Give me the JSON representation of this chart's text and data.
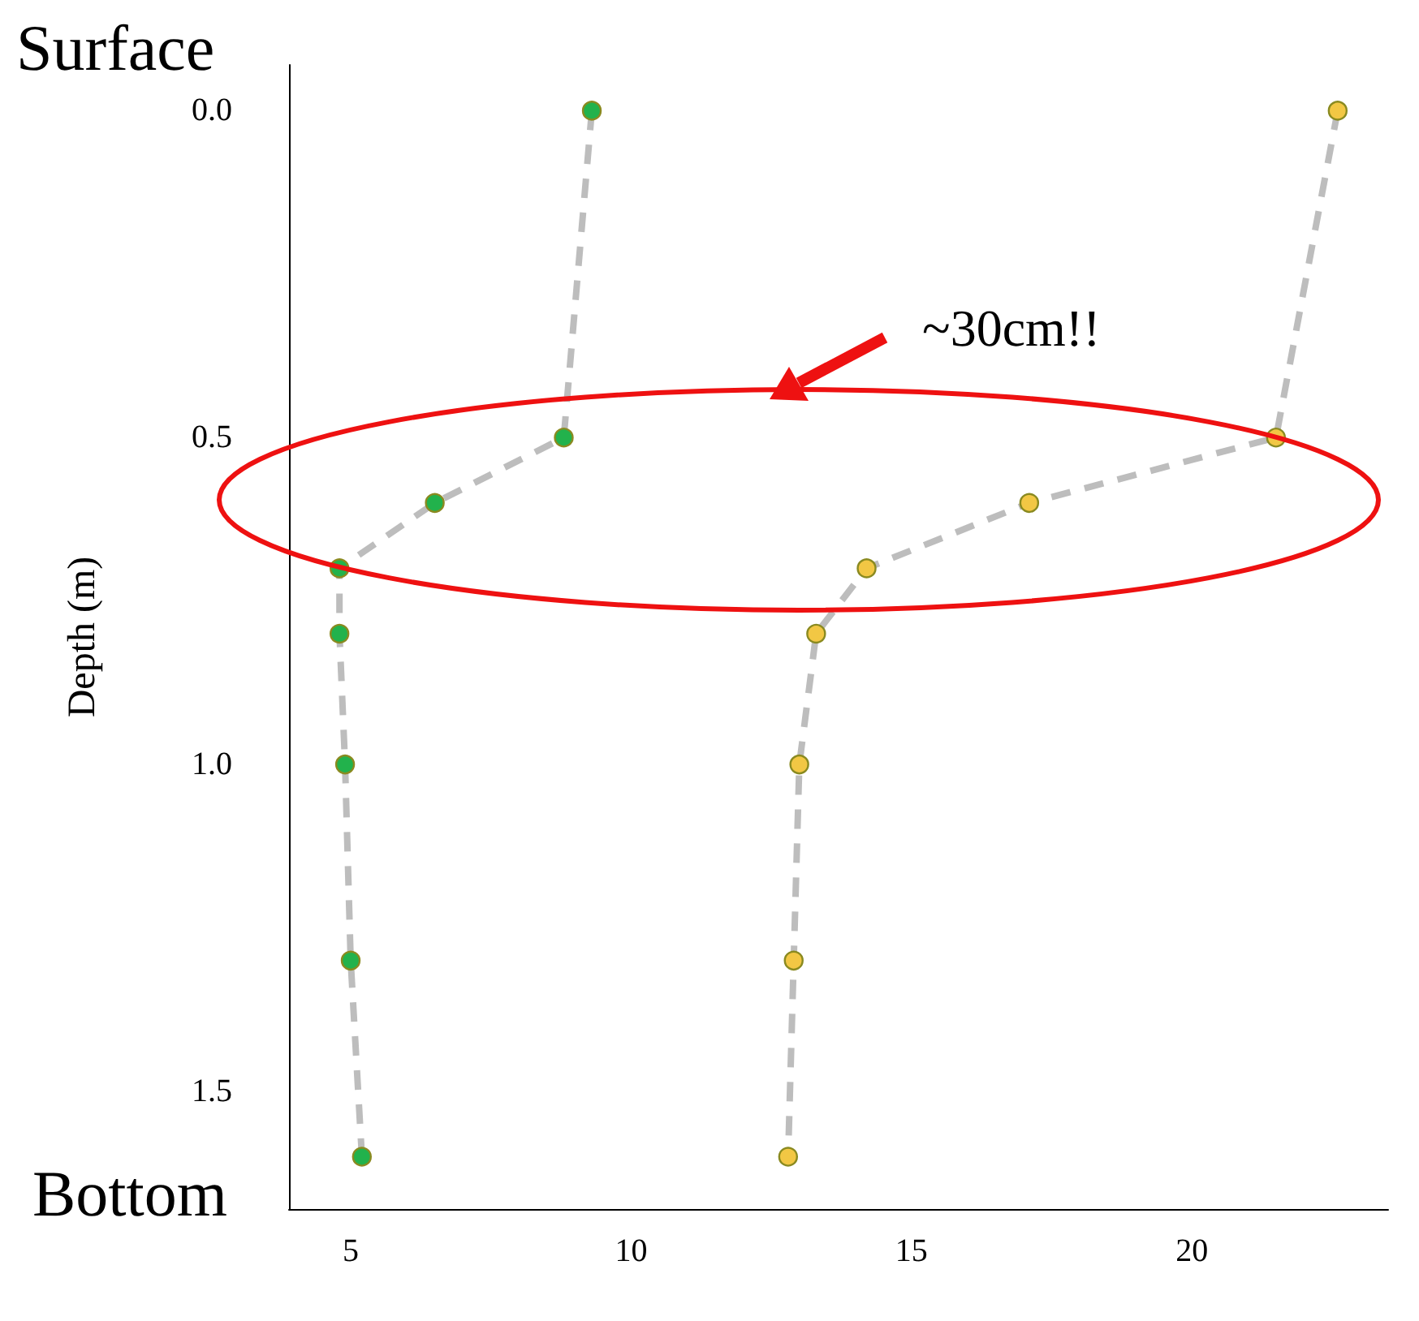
{
  "chart_data": {
    "type": "line",
    "ylabel": "Depth (m)",
    "annotations": [
      "Surface",
      "Bottom",
      "~30cm!!"
    ],
    "series": [
      {
        "color": "#22b24c",
        "x": [
          9.3,
          8.8,
          6.5,
          4.8,
          4.8,
          4.9,
          5.0,
          5.2
        ],
        "values": [
          0,
          0.5,
          0.6,
          0.7,
          0.8,
          1.0,
          1.3,
          1.6
        ]
      },
      {
        "color": "#f2c744",
        "x": [
          22.6,
          21.5,
          17.1,
          14.2,
          13.3,
          13.0,
          12.9,
          12.8
        ],
        "values": [
          0,
          0.5,
          0.6,
          0.7,
          0.8,
          1.0,
          1.3,
          1.6
        ]
      }
    ],
    "xlim": [
      3.9,
      23.5
    ],
    "xticks": [
      5,
      10,
      15,
      20
    ],
    "ylim": [
      1.68,
      -0.07
    ],
    "yticks": [
      {
        "value": 0,
        "label": "0.0"
      },
      {
        "value": 0.5,
        "label": "0.5"
      },
      {
        "value": 1,
        "label": "1.0"
      },
      {
        "value": 1.5,
        "label": "1.5"
      }
    ],
    "grid": false,
    "marker": "circle",
    "line_style": "dashed"
  }
}
